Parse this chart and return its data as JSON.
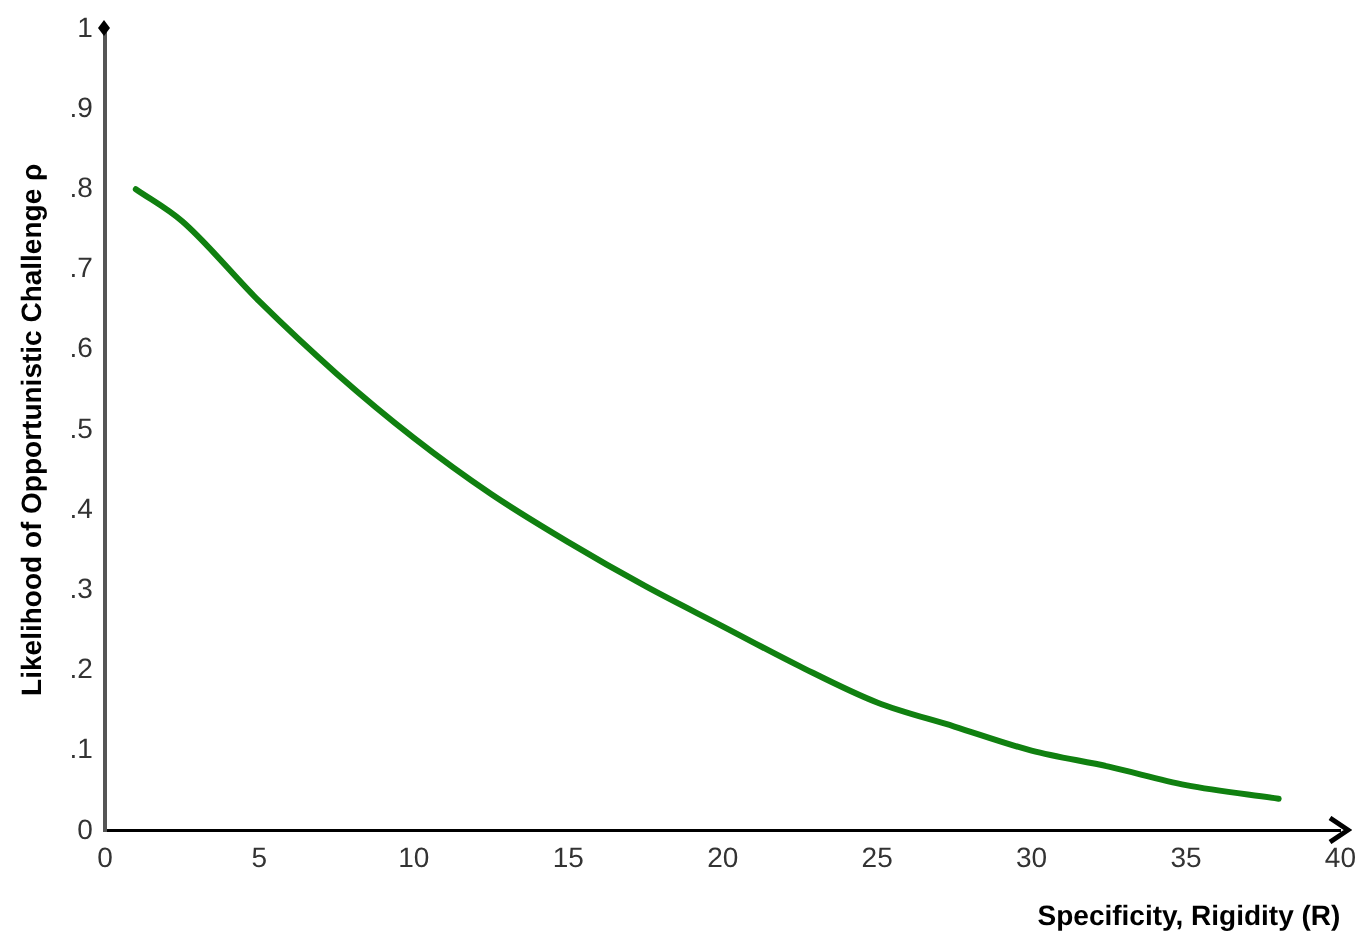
{
  "chart_data": {
    "type": "line",
    "xlabel": "Specificity, Rigidity (R)",
    "ylabel": "Likelihood of Opportunistic Challenge ρ",
    "series": [
      {
        "color": "#108010",
        "x": [
          1,
          2.5,
          5,
          7.5,
          10,
          12.5,
          15,
          17.5,
          20,
          22.5,
          25,
          27.5,
          30,
          32.5,
          35,
          38
        ],
        "values": [
          0.8,
          0.76,
          0.66,
          0.57,
          0.49,
          0.42,
          0.36,
          0.305,
          0.255,
          0.205,
          0.16,
          0.13,
          0.1,
          0.08,
          0.057,
          0.04
        ]
      }
    ],
    "xlim": [
      0,
      40
    ],
    "xticks": [
      0,
      5,
      10,
      15,
      20,
      25,
      30,
      35,
      40
    ],
    "ylim": [
      0,
      1
    ],
    "yticks": [
      0,
      {
        "value": 0.1,
        "label": ".1"
      },
      {
        "value": 0.2,
        "label": ".2"
      },
      {
        "value": 0.3,
        "label": ".3"
      },
      {
        "value": 0.4,
        "label": ".4"
      },
      {
        "value": 0.5,
        "label": ".5"
      },
      {
        "value": 0.6,
        "label": ".6"
      },
      {
        "value": 0.7,
        "label": ".7"
      },
      {
        "value": 0.8,
        "label": ".8"
      },
      {
        "value": 0.9,
        "label": ".9"
      },
      1
    ],
    "grid": false,
    "legend": false,
    "marker": "none",
    "line_style": "solid"
  }
}
